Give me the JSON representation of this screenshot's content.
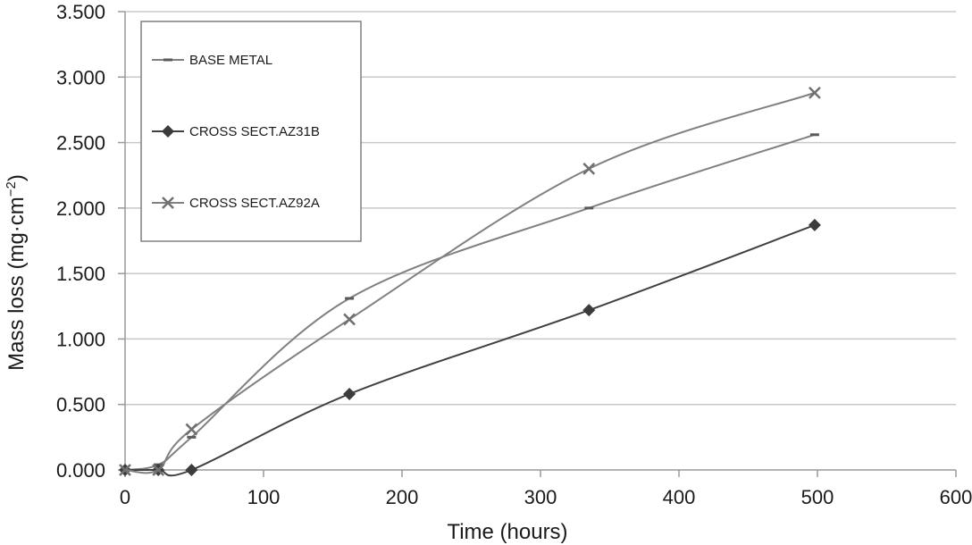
{
  "chart_data": {
    "type": "line",
    "title": "",
    "xlabel": "Time (hours)",
    "ylabel": "Mass loss (mg·cm",
    "ylabel_sup": "−2",
    "ylabel_close": ")",
    "xlim": [
      0,
      600
    ],
    "ylim": [
      0,
      3.5
    ],
    "x_ticks": [
      0,
      100,
      200,
      300,
      400,
      500,
      600
    ],
    "x_tick_labels": [
      "0",
      "100",
      "200",
      "300",
      "400",
      "500",
      "600"
    ],
    "y_ticks": [
      0,
      0.5,
      1.0,
      1.5,
      2.0,
      2.5,
      3.0,
      3.5
    ],
    "y_tick_labels": [
      "0.000",
      "0.500",
      "1.000",
      "1.500",
      "2.000",
      "2.500",
      "3.000",
      "3.500"
    ],
    "grid": "horizontal",
    "legend_position": "top-left",
    "series": [
      {
        "name": "BASE METAL",
        "marker": "dash",
        "color": "#808080",
        "points": [
          [
            0,
            0
          ],
          [
            24,
            0.04
          ],
          [
            48,
            0.25
          ],
          [
            162,
            1.31
          ],
          [
            335,
            2.0
          ],
          [
            498,
            2.56
          ]
        ]
      },
      {
        "name": "CROSS SECT.AZ31B",
        "marker": "diamond",
        "color": "#404040",
        "points": [
          [
            0,
            0
          ],
          [
            24,
            0
          ],
          [
            48,
            0
          ],
          [
            162,
            0.58
          ],
          [
            335,
            1.22
          ],
          [
            498,
            1.87
          ]
        ]
      },
      {
        "name": "CROSS SECT.AZ92A",
        "marker": "x",
        "color": "#808080",
        "points": [
          [
            0,
            0
          ],
          [
            24,
            0
          ],
          [
            48,
            0.31
          ],
          [
            162,
            1.15
          ],
          [
            335,
            2.3
          ],
          [
            498,
            2.88
          ]
        ]
      }
    ]
  }
}
